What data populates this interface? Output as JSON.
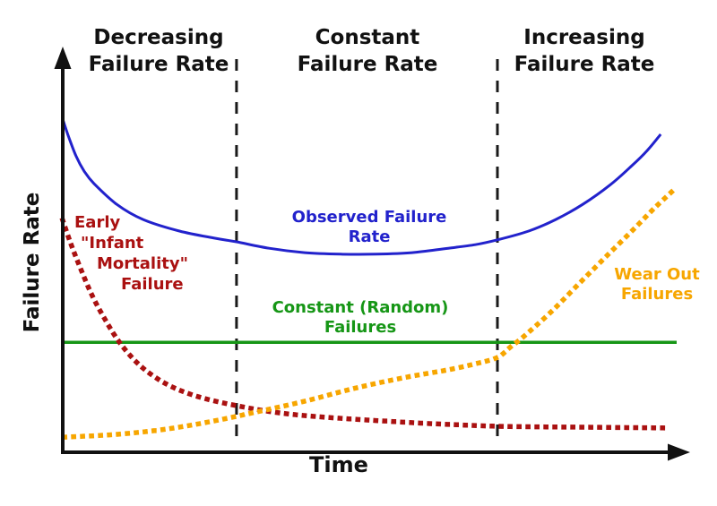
{
  "chart_data": {
    "type": "line",
    "title": "",
    "xlabel": "Time",
    "ylabel": "Failure Rate",
    "grid": false,
    "numeric_ticks": false,
    "coordinates_note": "conceptual chart with unlabeled axes; point coordinates are normalized 0-1 within the plot area (x: 0 at y-axis to 1 at right end, y: 0 at x-axis to 1 at top)",
    "regions": [
      {
        "label": "Decreasing Failure Rate"
      },
      {
        "label": "Constant Failure Rate"
      },
      {
        "label": "Increasing Failure Rate"
      }
    ],
    "region_dividers_x": [
      0.283,
      0.708
    ],
    "axis_color": "#111111",
    "divider_color": "#1a1a1a",
    "series": [
      {
        "name": "Constant (Random) Failures",
        "color": "#169616",
        "line_style": "solid",
        "width": 3.5,
        "points": [
          [
            0.0,
            0.276
          ],
          [
            1.0,
            0.276
          ]
        ]
      },
      {
        "name": "Observed Failure Rate",
        "color": "#2222cc",
        "line_style": "solid",
        "width": 3,
        "points": [
          [
            0.0,
            0.836
          ],
          [
            0.01,
            0.79
          ],
          [
            0.022,
            0.742
          ],
          [
            0.035,
            0.705
          ],
          [
            0.051,
            0.674
          ],
          [
            0.088,
            0.622
          ],
          [
            0.131,
            0.584
          ],
          [
            0.19,
            0.555
          ],
          [
            0.248,
            0.537
          ],
          [
            0.283,
            0.528
          ],
          [
            0.336,
            0.512
          ],
          [
            0.394,
            0.501
          ],
          [
            0.453,
            0.497
          ],
          [
            0.511,
            0.497
          ],
          [
            0.569,
            0.501
          ],
          [
            0.628,
            0.512
          ],
          [
            0.672,
            0.521
          ],
          [
            0.708,
            0.533
          ],
          [
            0.759,
            0.555
          ],
          [
            0.803,
            0.584
          ],
          [
            0.847,
            0.622
          ],
          [
            0.891,
            0.67
          ],
          [
            0.927,
            0.719
          ],
          [
            0.952,
            0.757
          ],
          [
            0.974,
            0.798
          ]
        ]
      },
      {
        "name": "Early \"Infant Mortality\" Failure",
        "label_lines": [
          "Early",
          "\"Infant",
          "Mortality\"",
          "Failure"
        ],
        "color": "#aa1111",
        "line_style": "dotted",
        "width": 5.5,
        "points": [
          [
            0.0,
            0.582
          ],
          [
            0.013,
            0.524
          ],
          [
            0.029,
            0.461
          ],
          [
            0.048,
            0.393
          ],
          [
            0.069,
            0.333
          ],
          [
            0.091,
            0.279
          ],
          [
            0.117,
            0.231
          ],
          [
            0.146,
            0.193
          ],
          [
            0.181,
            0.162
          ],
          [
            0.226,
            0.137
          ],
          [
            0.283,
            0.117
          ],
          [
            0.343,
            0.101
          ],
          [
            0.409,
            0.09
          ],
          [
            0.496,
            0.081
          ],
          [
            0.599,
            0.072
          ],
          [
            0.715,
            0.065
          ],
          [
            0.847,
            0.063
          ],
          [
            0.99,
            0.061
          ]
        ]
      },
      {
        "name": "Wear Out Failures",
        "color": "#f7a600",
        "line_style": "dotted",
        "width": 5.5,
        "points": [
          [
            0.003,
            0.038
          ],
          [
            0.088,
            0.045
          ],
          [
            0.168,
            0.058
          ],
          [
            0.248,
            0.079
          ],
          [
            0.321,
            0.103
          ],
          [
            0.394,
            0.128
          ],
          [
            0.474,
            0.16
          ],
          [
            0.555,
            0.187
          ],
          [
            0.628,
            0.207
          ],
          [
            0.672,
            0.222
          ],
          [
            0.708,
            0.238
          ],
          [
            0.73,
            0.265
          ],
          [
            0.752,
            0.292
          ],
          [
            0.796,
            0.353
          ],
          [
            0.839,
            0.42
          ],
          [
            0.883,
            0.488
          ],
          [
            0.927,
            0.555
          ],
          [
            0.964,
            0.613
          ],
          [
            1.0,
            0.665
          ]
        ]
      }
    ]
  }
}
